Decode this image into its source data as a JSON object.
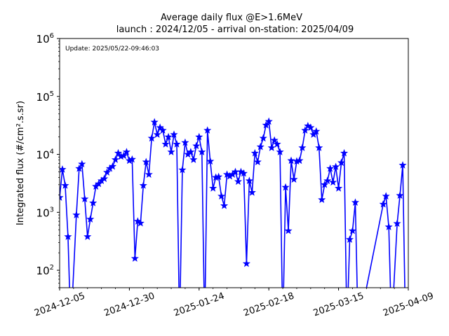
{
  "chart_data": {
    "type": "line",
    "title": "Average daily flux @E>1.6MeV",
    "subtitle": "launch : 2024/12/05 - arrival on-station: 2025/04/09",
    "annotation": "Update: 2025/05/22-09:46:03",
    "xlabel": "",
    "ylabel": "Integrated flux (#/cm².s.sr)",
    "y_scale": "log",
    "xlim": [
      "2024-12-05",
      "2025-04-09"
    ],
    "ylim": [
      50,
      1000000
    ],
    "x_ticks": [
      "2024-12-05",
      "2024-12-30",
      "2025-01-24",
      "2025-02-18",
      "2025-03-15",
      "2025-04-09"
    ],
    "y_ticks": [
      {
        "value": 100,
        "label": "10",
        "exp": "2"
      },
      {
        "value": 1000,
        "label": "10",
        "exp": "3"
      },
      {
        "value": 10000,
        "label": "10",
        "exp": "4"
      },
      {
        "value": 100000,
        "label": "10",
        "exp": "5"
      },
      {
        "value": 1000000,
        "label": "10",
        "exp": "6"
      }
    ],
    "grid": false,
    "color": "#0000ff",
    "marker": "star",
    "series": [
      {
        "points": [
          [
            "2024-12-05",
            1800
          ],
          [
            "2024-12-06",
            5500
          ],
          [
            "2024-12-07",
            2900
          ],
          [
            "2024-12-08",
            380
          ],
          [
            "2024-12-09",
            null
          ],
          [
            "2024-12-11",
            900
          ],
          [
            "2024-12-12",
            5700
          ],
          [
            "2024-12-13",
            6800
          ],
          [
            "2024-12-14",
            1700
          ],
          [
            "2024-12-15",
            380
          ],
          [
            "2024-12-16",
            760
          ],
          [
            "2024-12-17",
            1450
          ],
          [
            "2024-12-18",
            2800
          ],
          [
            "2024-12-19",
            3100
          ],
          [
            "2024-12-20",
            3500
          ],
          [
            "2024-12-21",
            3800
          ],
          [
            "2024-12-22",
            4900
          ],
          [
            "2024-12-23",
            5700
          ],
          [
            "2024-12-24",
            6200
          ],
          [
            "2024-12-25",
            8100
          ],
          [
            "2024-12-26",
            10500
          ],
          [
            "2024-12-27",
            9200
          ],
          [
            "2024-12-28",
            9500
          ],
          [
            "2024-12-29",
            11000
          ],
          [
            "2024-12-30",
            7800
          ],
          [
            "2024-12-31",
            8200
          ],
          [
            "2025-01-01",
            160
          ],
          [
            "2025-01-02",
            700
          ],
          [
            "2025-01-03",
            650
          ],
          [
            "2025-01-04",
            2900
          ],
          [
            "2025-01-05",
            7400
          ],
          [
            "2025-01-06",
            4500
          ],
          [
            "2025-01-07",
            19000
          ],
          [
            "2025-01-08",
            36000
          ],
          [
            "2025-01-09",
            22000
          ],
          [
            "2025-01-10",
            29000
          ],
          [
            "2025-01-11",
            26000
          ],
          [
            "2025-01-12",
            15000
          ],
          [
            "2025-01-13",
            20000
          ],
          [
            "2025-01-14",
            11000
          ],
          [
            "2025-01-15",
            22000
          ],
          [
            "2025-01-16",
            15000
          ],
          [
            "2025-01-17",
            null
          ],
          [
            "2025-01-18",
            5400
          ],
          [
            "2025-01-19",
            16000
          ],
          [
            "2025-01-20",
            10000
          ],
          [
            "2025-01-21",
            11000
          ],
          [
            "2025-01-22",
            8100
          ],
          [
            "2025-01-23",
            14000
          ],
          [
            "2025-01-24",
            20000
          ],
          [
            "2025-01-25",
            11000
          ],
          [
            "2025-01-26",
            null
          ],
          [
            "2025-01-27",
            26000
          ],
          [
            "2025-01-28",
            7600
          ],
          [
            "2025-01-29",
            2600
          ],
          [
            "2025-01-30",
            4000
          ],
          [
            "2025-01-31",
            4100
          ],
          [
            "2025-02-01",
            1900
          ],
          [
            "2025-02-02",
            1300
          ],
          [
            "2025-02-03",
            4500
          ],
          [
            "2025-02-04",
            4200
          ],
          [
            "2025-02-05",
            4500
          ],
          [
            "2025-02-06",
            5000
          ],
          [
            "2025-02-07",
            3400
          ],
          [
            "2025-02-08",
            5000
          ],
          [
            "2025-02-09",
            4700
          ],
          [
            "2025-02-10",
            130
          ],
          [
            "2025-02-11",
            3500
          ],
          [
            "2025-02-12",
            2200
          ],
          [
            "2025-02-13",
            10500
          ],
          [
            "2025-02-14",
            7400
          ],
          [
            "2025-02-15",
            13500
          ],
          [
            "2025-02-16",
            19000
          ],
          [
            "2025-02-17",
            32000
          ],
          [
            "2025-02-18",
            37000
          ],
          [
            "2025-02-19",
            13000
          ],
          [
            "2025-02-20",
            17500
          ],
          [
            "2025-02-21",
            15000
          ],
          [
            "2025-02-22",
            11000
          ],
          [
            "2025-02-23",
            null
          ],
          [
            "2025-02-24",
            2700
          ],
          [
            "2025-02-25",
            480
          ],
          [
            "2025-02-26",
            7800
          ],
          [
            "2025-02-27",
            3700
          ],
          [
            "2025-02-28",
            7600
          ],
          [
            "2025-03-01",
            7800
          ],
          [
            "2025-03-02",
            13000
          ],
          [
            "2025-03-03",
            26000
          ],
          [
            "2025-03-04",
            31000
          ],
          [
            "2025-03-05",
            29000
          ],
          [
            "2025-03-06",
            22000
          ],
          [
            "2025-03-07",
            25000
          ],
          [
            "2025-03-08",
            13000
          ],
          [
            "2025-03-09",
            1650
          ],
          [
            "2025-03-10",
            3000
          ],
          [
            "2025-03-11",
            3500
          ],
          [
            "2025-03-12",
            5700
          ],
          [
            "2025-03-13",
            3300
          ],
          [
            "2025-03-14",
            6100
          ],
          [
            "2025-03-15",
            2600
          ],
          [
            "2025-03-16",
            7200
          ],
          [
            "2025-03-17",
            10500
          ],
          [
            "2025-03-18",
            null
          ],
          [
            "2025-03-19",
            340
          ],
          [
            "2025-03-20",
            480
          ],
          [
            "2025-03-21",
            1480
          ],
          [
            "2025-03-22",
            null
          ],
          [
            "2025-03-31",
            1380
          ],
          [
            "2025-04-01",
            1900
          ],
          [
            "2025-04-02",
            560
          ],
          [
            "2025-04-03",
            null
          ],
          [
            "2025-04-05",
            640
          ],
          [
            "2025-04-06",
            1950
          ],
          [
            "2025-04-07",
            6500
          ],
          [
            "2025-04-08",
            null
          ]
        ]
      }
    ]
  }
}
